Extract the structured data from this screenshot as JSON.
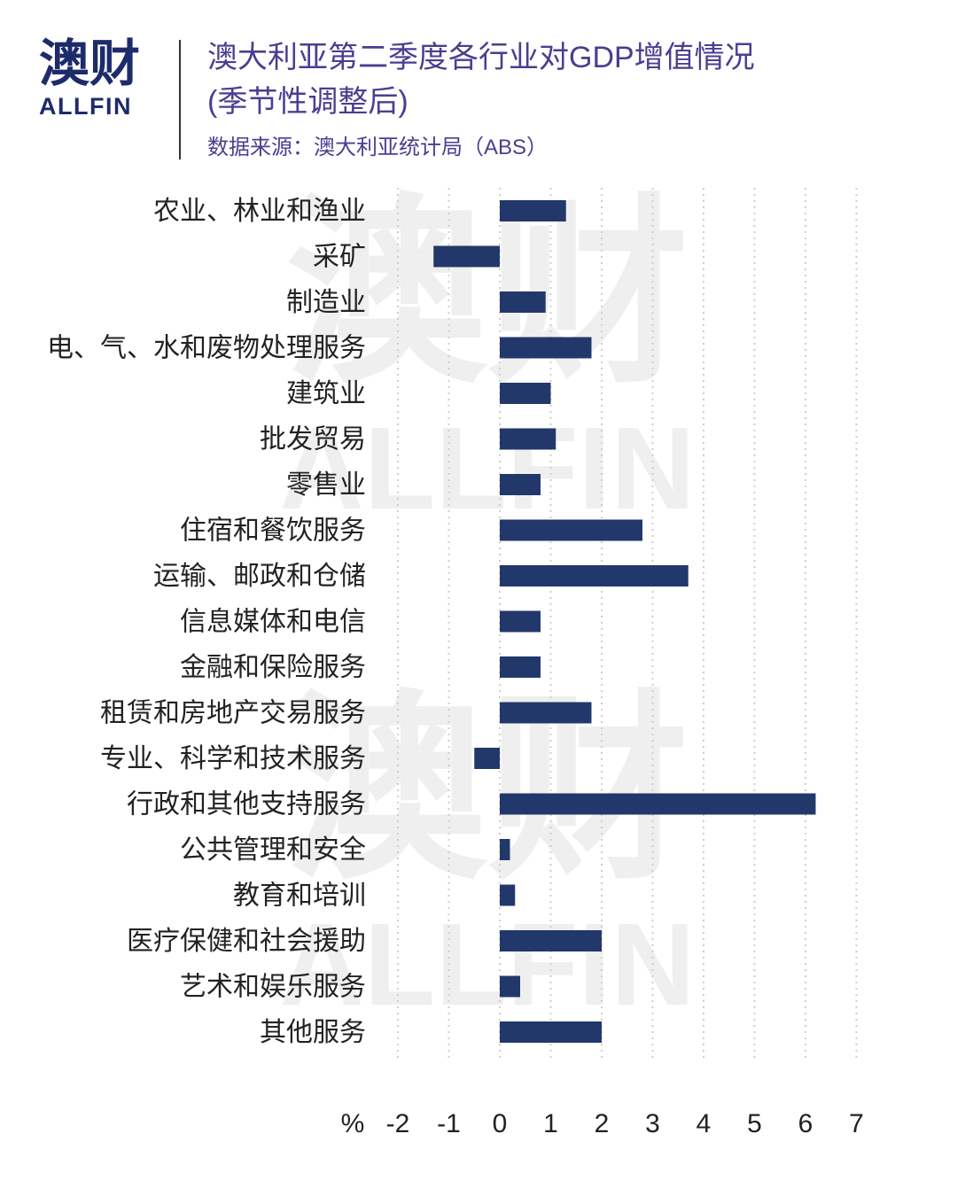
{
  "logo": {
    "mark": "澳财",
    "text": "ALLFIN"
  },
  "watermark": {
    "mark": "澳财",
    "text": "ALLFIN"
  },
  "colors": {
    "bar": "#22386b",
    "title": "#4b3e90",
    "logo": "#1e2b6b",
    "label": "#222222",
    "grid": "#cfcfcf",
    "watermark": "#efefef"
  },
  "chart_data": {
    "type": "bar",
    "orientation": "horizontal",
    "title": "澳大利亚第二季度各行业对GDP增值情况",
    "subtitle": "(季节性调整后)",
    "source": "数据来源：澳大利亚统计局（ABS）",
    "unit": "%",
    "categories": [
      "农业、林业和渔业",
      "采矿",
      "制造业",
      "电、气、水和废物处理服务",
      "建筑业",
      "批发贸易",
      "零售业",
      "住宿和餐饮服务",
      "运输、邮政和仓储",
      "信息媒体和电信",
      "金融和保险服务",
      "租赁和房地产交易服务",
      "专业、科学和技术服务",
      "行政和其他支持服务",
      "公共管理和安全",
      "教育和培训",
      "医疗保健和社会援助",
      "艺术和娱乐服务",
      "其他服务"
    ],
    "values": [
      1.3,
      -1.3,
      0.9,
      1.8,
      1.0,
      1.1,
      0.8,
      2.8,
      3.7,
      0.8,
      0.8,
      1.8,
      -0.5,
      6.2,
      0.2,
      0.3,
      2.0,
      0.4,
      2.0
    ],
    "xlim": [
      -2,
      7
    ],
    "ticks": [
      -2,
      -1,
      0,
      1,
      2,
      3,
      4,
      5,
      6,
      7
    ],
    "grid": "vertical dotted",
    "legend": "none"
  }
}
